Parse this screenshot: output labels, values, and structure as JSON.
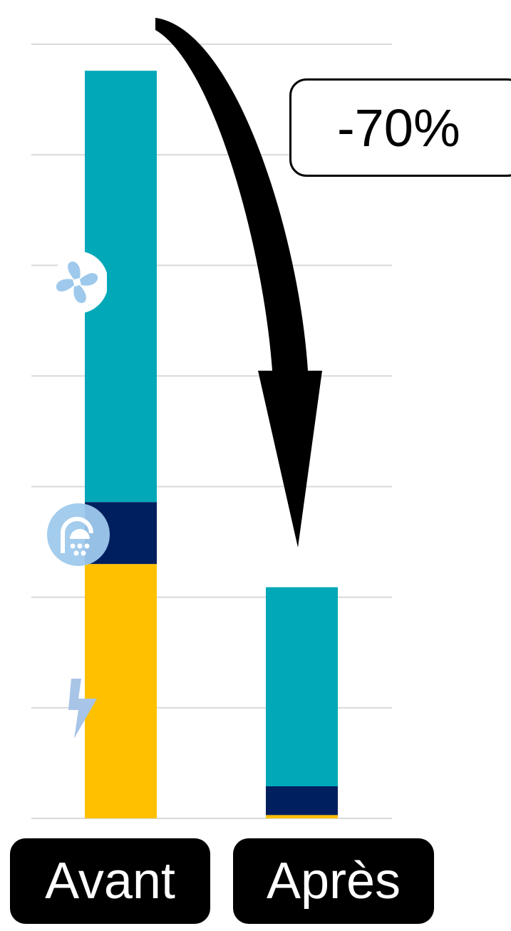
{
  "chart_data": {
    "type": "bar",
    "stacked": true,
    "categories": [
      "Avant",
      "Après"
    ],
    "series": [
      {
        "values": [
          230,
          3
        ],
        "color": "#FFC000",
        "icon": "lightning-icon"
      },
      {
        "values": [
          56,
          26
        ],
        "color": "#001F5F",
        "icon": "shower-icon"
      },
      {
        "values": [
          390,
          180
        ],
        "color": "#00A8B8",
        "icon": "fan-icon"
      }
    ],
    "ylim": [
      0,
      700
    ],
    "grid": true,
    "annotation": {
      "text": "-70%",
      "arrow": "curved-down"
    }
  },
  "colors": {
    "grid": "#D9D9D9",
    "arrow": "#000000",
    "icon": "#9EC9EC"
  }
}
